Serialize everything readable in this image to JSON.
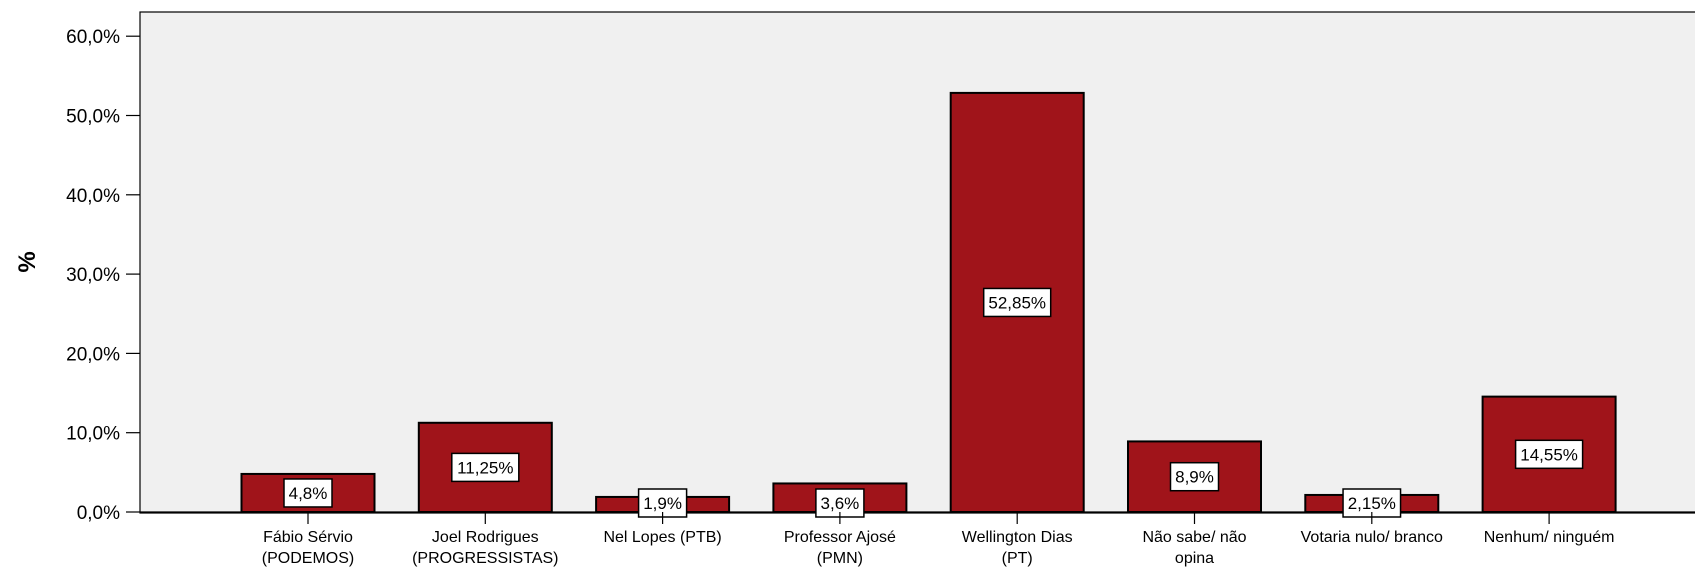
{
  "chart_data": {
    "type": "bar",
    "title": "",
    "xlabel": "",
    "ylabel": "%",
    "ylim": [
      0,
      63
    ],
    "yticks": [
      0,
      10,
      20,
      30,
      40,
      50,
      60
    ],
    "ytick_labels": [
      "0,0%",
      "10,0%",
      "20,0%",
      "30,0%",
      "40,0%",
      "50,0%",
      "60,0%"
    ],
    "categories": [
      [
        "Fábio Sérvio",
        "(PODEMOS)"
      ],
      [
        "Joel Rodrigues",
        "(PROGRESSISTAS)"
      ],
      [
        "Nel Lopes (PTB)"
      ],
      [
        "Professor Ajosé",
        "(PMN)"
      ],
      [
        "Wellington Dias",
        "(PT)"
      ],
      [
        "Não sabe/ não",
        "opina"
      ],
      [
        "Votaria nulo/ branco"
      ],
      [
        "Nenhum/ ninguém"
      ]
    ],
    "values": [
      4.8,
      11.25,
      1.9,
      3.6,
      52.85,
      8.9,
      2.15,
      14.55
    ],
    "data_labels": [
      "4,8%",
      "11,25%",
      "1,9%",
      "3,6%",
      "52,85%",
      "8,9%",
      "2,15%",
      "14,55%"
    ],
    "bar_color": "#a0141a",
    "plot_background": "#f0f0f0",
    "grid": false
  }
}
